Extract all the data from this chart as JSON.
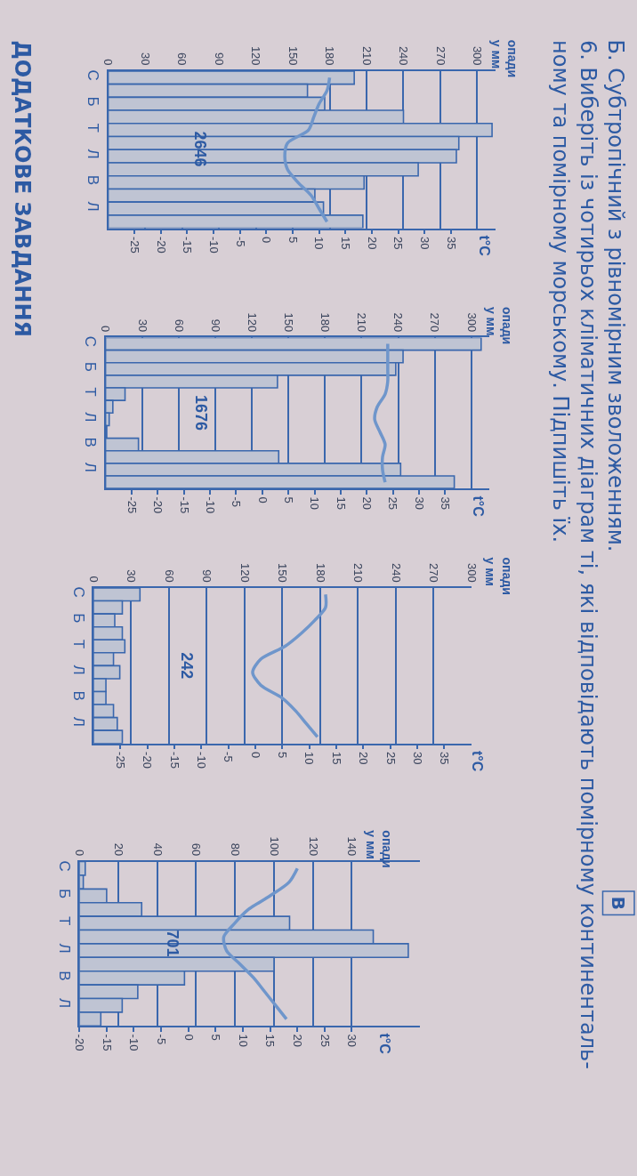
{
  "chart_data": [
    {
      "type": "bar",
      "orientation": "horizontal",
      "categories": [
        "С",
        null,
        "Б",
        null,
        "Т",
        null,
        "Л",
        null,
        "В",
        null,
        "Л",
        null
      ],
      "series": [
        {
          "color": "#bfc4d3",
          "values": [
            200,
            162,
            176,
            240,
            312,
            285,
            283,
            252,
            208,
            168,
            175,
            207
          ]
        },
        {
          "type": "line",
          "axis": "x2",
          "color": "#6f96cb",
          "values": [
            12,
            11.5,
            10,
            9,
            8,
            4,
            3.5,
            4,
            6,
            8.5,
            10,
            11.5
          ]
        }
      ],
      "xlim": [
        0,
        315
      ],
      "xticks": [
        0,
        30,
        60,
        90,
        120,
        150,
        180,
        210,
        240,
        270,
        300
      ],
      "x2lim": [
        -30,
        43.5
      ],
      "x2ticks": [
        -25,
        -20,
        -15,
        -10,
        -5,
        0,
        5,
        10,
        15,
        20,
        25,
        30,
        35
      ],
      "grid": "x",
      "annotations": [
        "Б. Субтропічний з рівномірним зволоженням.",
        "6. Виберіть із чотирьох кліматичних діаграм ті, які відповідають помірному континенталь-\nному та помірному морському. Підпишіть їх.",
        "ДОДАТКОВЕ ЗАВДАННЯ",
        "опади\nу мм",
        "t°C",
        "2646"
      ]
    },
    {
      "type": "bar",
      "orientation": "horizontal",
      "categories": [
        "С",
        null,
        "Б",
        null,
        "Т",
        null,
        "Л",
        null,
        "В",
        null,
        "Л",
        null
      ],
      "series": [
        {
          "color": "#bfc4d3",
          "values": [
            308,
            244,
            238,
            141,
            16,
            6,
            3,
            1,
            27,
            142,
            242,
            286
          ]
        },
        {
          "type": "line",
          "axis": "x2",
          "color": "#6f96cb",
          "values": [
            24,
            24,
            24,
            24,
            23.5,
            22,
            21.5,
            22.5,
            23.5,
            23,
            23,
            23.5
          ]
        }
      ],
      "xlim": [
        0,
        315
      ],
      "xticks": [
        0,
        30,
        60,
        90,
        120,
        150,
        180,
        210,
        240,
        270,
        300
      ],
      "x2lim": [
        -30,
        43.5
      ],
      "x2ticks": [
        -25,
        -20,
        -15,
        -10,
        -5,
        0,
        5,
        10,
        15,
        20,
        25,
        30,
        35
      ],
      "grid": "x",
      "annotations": [
        "опади\nу мм",
        "t°C",
        "1676"
      ]
    },
    {
      "type": "bar",
      "orientation": "horizontal",
      "categories": [
        "С",
        null,
        "Б",
        null,
        "Т",
        null,
        "Л",
        null,
        "В",
        null,
        "Л",
        null
      ],
      "series": [
        {
          "color": "#bfc4d3",
          "values": [
            37,
            23,
            17,
            23,
            25,
            16,
            21,
            10,
            10,
            16,
            19,
            23
          ]
        },
        {
          "type": "line",
          "axis": "x2",
          "color": "#6f96cb",
          "values": [
            13,
            13,
            11,
            8.5,
            5.5,
            1,
            -0.5,
            1,
            5,
            7.5,
            9.5,
            11.5
          ]
        }
      ],
      "xlim": [
        0,
        300
      ],
      "xticks": [
        0,
        30,
        60,
        90,
        120,
        150,
        180,
        210,
        240,
        270,
        300
      ],
      "x2lim": [
        -30,
        40
      ],
      "x2ticks": [
        -25,
        -20,
        -15,
        -10,
        -5,
        0,
        5,
        10,
        15,
        20,
        25,
        30,
        35
      ],
      "grid": "x",
      "annotations": [
        "опади\nу мм",
        "t°C",
        "242"
      ]
    },
    {
      "type": "bar",
      "orientation": "horizontal",
      "categories": [
        "С",
        null,
        "Б",
        null,
        "Т",
        null,
        "Л",
        null,
        "В",
        null,
        "Л",
        null
      ],
      "series": [
        {
          "color": "#bfc4d3",
          "values": [
            3,
            2,
            14,
            32,
            108,
            151,
            169,
            100,
            54,
            30,
            22,
            11
          ]
        },
        {
          "type": "line",
          "axis": "x2",
          "color": "#6f96cb",
          "values": [
            20,
            18.5,
            15,
            11,
            8.5,
            6.5,
            7,
            9.5,
            12,
            14,
            16,
            18
          ]
        }
      ],
      "xlim": [
        0,
        175
      ],
      "xticks": [
        0,
        20,
        40,
        60,
        80,
        100,
        120,
        140
      ],
      "x2lim": [
        -20,
        42.5
      ],
      "x2ticks": [
        -20,
        -15,
        -10,
        -5,
        0,
        5,
        10,
        15,
        20,
        25,
        30
      ],
      "grid": "x",
      "annotations": [
        "опади\nу мм",
        "t°C",
        "701",
        "В"
      ]
    }
  ]
}
